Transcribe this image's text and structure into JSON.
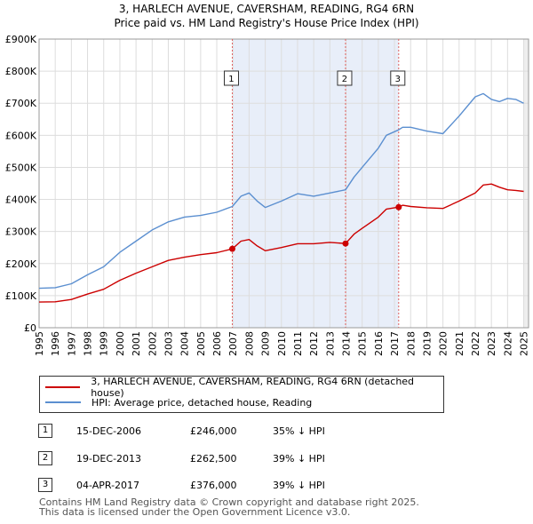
{
  "chart_data": {
    "type": "line",
    "title": "3, HARLECH AVENUE, CAVERSHAM, READING, RG4 6RN",
    "subtitle": "Price paid vs. HM Land Registry's House Price Index (HPI)",
    "xlabel": "",
    "ylabel": "",
    "xlim": [
      1995,
      2025.3
    ],
    "ylim": [
      0,
      900000
    ],
    "x_ticks": [
      "1995",
      "1996",
      "1997",
      "1998",
      "1999",
      "2000",
      "2001",
      "2002",
      "2003",
      "2004",
      "2005",
      "2006",
      "2007",
      "2008",
      "2009",
      "2010",
      "2011",
      "2012",
      "2013",
      "2014",
      "2015",
      "2016",
      "2017",
      "2018",
      "2019",
      "2020",
      "2021",
      "2022",
      "2023",
      "2024",
      "2025"
    ],
    "y_ticks": [
      {
        "value": 0,
        "label": "£0"
      },
      {
        "value": 100000,
        "label": "£100K"
      },
      {
        "value": 200000,
        "label": "£200K"
      },
      {
        "value": 300000,
        "label": "£300K"
      },
      {
        "value": 400000,
        "label": "£400K"
      },
      {
        "value": 500000,
        "label": "£500K"
      },
      {
        "value": 600000,
        "label": "£600K"
      },
      {
        "value": 700000,
        "label": "£700K"
      },
      {
        "value": 800000,
        "label": "£800K"
      },
      {
        "value": 900000,
        "label": "£900K"
      }
    ],
    "shaded_region": [
      2006.96,
      2017.26
    ],
    "series": [
      {
        "name": "3, HARLECH AVENUE, CAVERSHAM, READING, RG4 6RN (detached house)",
        "color": "#cc0000",
        "x": [
          1995,
          1996,
          1997,
          1998,
          1999,
          2000,
          2001,
          2002,
          2003,
          2004,
          2005,
          2006,
          2006.96,
          2007.5,
          2008,
          2008.5,
          2009,
          2010,
          2011,
          2012,
          2013,
          2013.97,
          2014.5,
          2015,
          2016,
          2016.5,
          2017.26,
          2017.5,
          2018,
          2019,
          2020,
          2021,
          2022,
          2022.5,
          2023,
          2023.5,
          2024,
          2024.5,
          2025
        ],
        "values": [
          80000,
          81000,
          88000,
          105000,
          120000,
          148000,
          170000,
          190000,
          210000,
          220000,
          228000,
          234000,
          246000,
          270000,
          275000,
          255000,
          240000,
          250000,
          262000,
          262000,
          266000,
          262500,
          292000,
          310000,
          345000,
          370000,
          376000,
          382000,
          378000,
          374000,
          372000,
          395000,
          420000,
          445000,
          448000,
          438000,
          430000,
          428000,
          425000
        ]
      },
      {
        "name": "HPI: Average price, detached house, Reading",
        "color": "#5b8fd0",
        "x": [
          1995,
          1996,
          1997,
          1998,
          1999,
          2000,
          2001,
          2002,
          2003,
          2004,
          2005,
          2006,
          2006.96,
          2007.5,
          2008,
          2008.5,
          2009,
          2010,
          2011,
          2012,
          2013,
          2013.97,
          2014.5,
          2015,
          2016,
          2016.5,
          2017.26,
          2017.5,
          2018,
          2019,
          2020,
          2021,
          2022,
          2022.5,
          2023,
          2023.5,
          2024,
          2024.5,
          2025
        ],
        "values": [
          123000,
          125000,
          137000,
          165000,
          190000,
          235000,
          270000,
          305000,
          330000,
          345000,
          350000,
          360000,
          378000,
          410000,
          420000,
          395000,
          375000,
          395000,
          418000,
          410000,
          420000,
          430000,
          470000,
          500000,
          560000,
          600000,
          617000,
          625000,
          625000,
          613000,
          605000,
          660000,
          720000,
          730000,
          712000,
          705000,
          715000,
          712000,
          700000
        ]
      }
    ],
    "sales": [
      {
        "num": "1",
        "x": 2006.96,
        "value": 246000
      },
      {
        "num": "2",
        "x": 2013.97,
        "value": 262500
      },
      {
        "num": "3",
        "x": 2017.26,
        "value": 376000
      }
    ]
  },
  "legend": {
    "property": "3, HARLECH AVENUE, CAVERSHAM, READING, RG4 6RN (detached house)",
    "hpi": "HPI: Average price, detached house, Reading"
  },
  "transactions": [
    {
      "num": "1",
      "date": "15-DEC-2006",
      "price": "£246,000",
      "hpi": "35% ↓ HPI"
    },
    {
      "num": "2",
      "date": "19-DEC-2013",
      "price": "£262,500",
      "hpi": "39% ↓ HPI"
    },
    {
      "num": "3",
      "date": "04-APR-2017",
      "price": "£376,000",
      "hpi": "39% ↓ HPI"
    }
  ],
  "footer": {
    "line1": "Contains HM Land Registry data © Crown copyright and database right 2025.",
    "line2": "This data is licensed under the Open Government Licence v3.0."
  },
  "colors": {
    "property": "#cc0000",
    "hpi": "#5b8fd0",
    "shade": "#e8eef9",
    "marker_line": "#e06060"
  }
}
